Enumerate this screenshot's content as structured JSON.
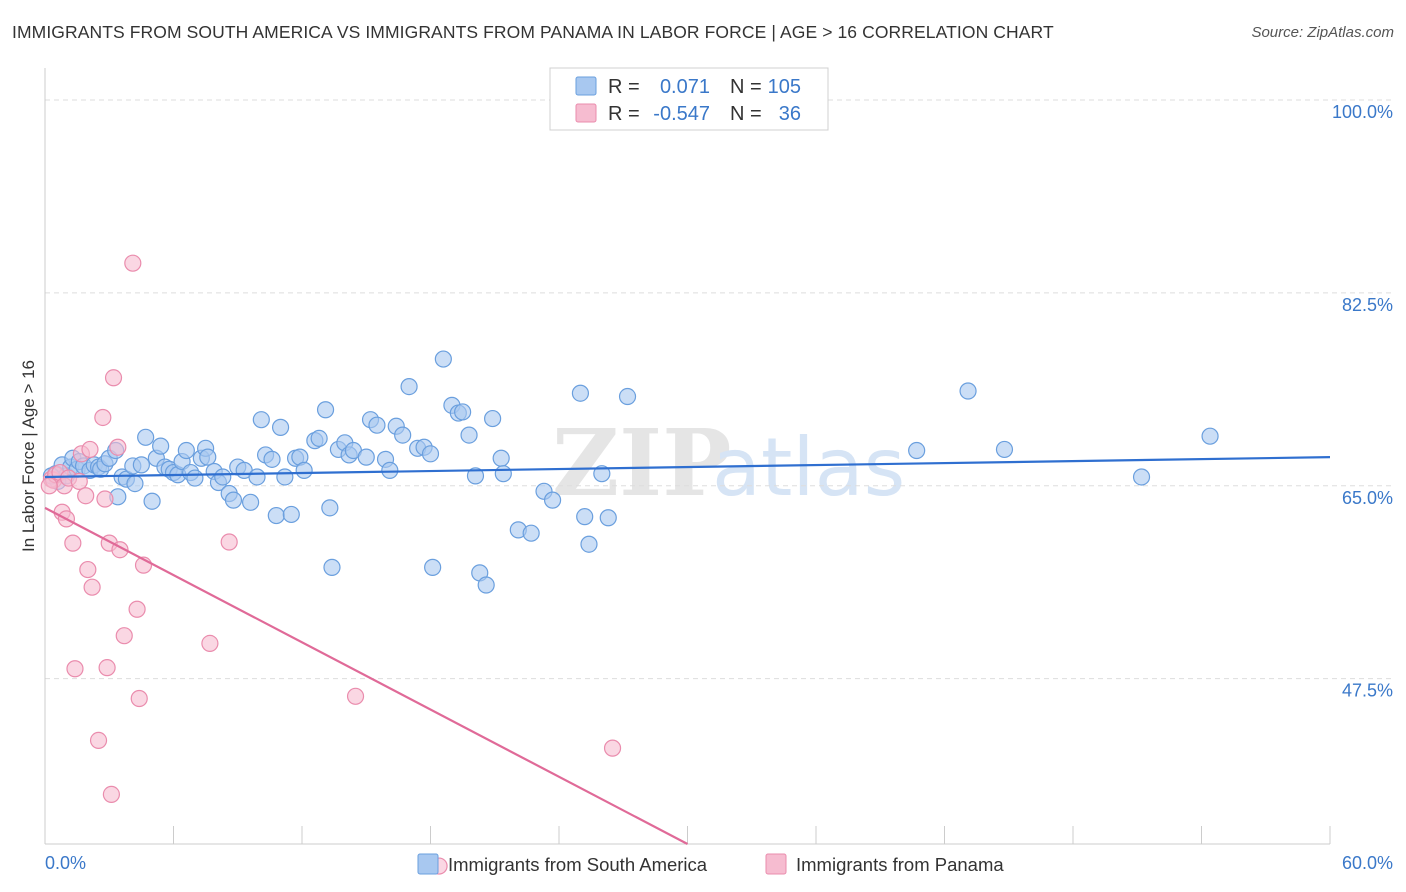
{
  "title": "IMMIGRANTS FROM SOUTH AMERICA VS IMMIGRANTS FROM PANAMA IN LABOR FORCE | AGE > 16 CORRELATION CHART",
  "source": "Source: ZipAtlas.com",
  "watermark": {
    "zip": "ZIP",
    "atlas": "atlas"
  },
  "colors": {
    "blue_fill": "#a8c8f0",
    "blue_stroke": "#6a9fde",
    "blue_line": "#2f6fd0",
    "pink_fill": "#f6bcd0",
    "pink_stroke": "#ea8cad",
    "pink_line": "#e06a98",
    "tick_text": "#3a78c9",
    "grid": "#dddddd"
  },
  "legend": {
    "rows": [
      {
        "r_label": "R =",
        "r_value": "0.071",
        "n_label": "N =",
        "n_value": "105"
      },
      {
        "r_label": "R =",
        "r_value": "-0.547",
        "n_label": "N =",
        "n_value": "36"
      }
    ]
  },
  "chart_data": {
    "type": "scatter",
    "title": "IMMIGRANTS FROM SOUTH AMERICA VS IMMIGRANTS FROM PANAMA IN LABOR FORCE | AGE > 16 CORRELATION CHART",
    "xlabel": "",
    "ylabel": "In Labor Force | Age > 16",
    "xlim": [
      0,
      60
    ],
    "ylim": [
      32.5,
      102
    ],
    "x_tick_labels": [
      "0.0%",
      "60.0%"
    ],
    "y_ticks": [
      47.5,
      65.0,
      82.5,
      100.0
    ],
    "y_tick_labels": [
      "47.5%",
      "65.0%",
      "82.5%",
      "100.0%"
    ],
    "grid": "horizontal dashed",
    "legend_position": "bottom-center",
    "series": [
      {
        "name": "Immigrants from South America",
        "color": "#a8c8f0",
        "trend": {
          "x": [
            0,
            60
          ],
          "y": [
            65.8,
            67.6
          ]
        },
        "points": [
          [
            0.5,
            66.1
          ],
          [
            0.6,
            65.4
          ],
          [
            0.8,
            66.9
          ],
          [
            1.0,
            65.9
          ],
          [
            1.2,
            66.7
          ],
          [
            1.3,
            67.5
          ],
          [
            1.5,
            66.5
          ],
          [
            1.6,
            67.2
          ],
          [
            1.8,
            66.8
          ],
          [
            2.1,
            66.4
          ],
          [
            2.3,
            66.9
          ],
          [
            2.5,
            66.7
          ],
          [
            2.6,
            66.5
          ],
          [
            2.8,
            67.0
          ],
          [
            3.0,
            67.5
          ],
          [
            3.3,
            68.2
          ],
          [
            3.4,
            64.0
          ],
          [
            3.6,
            65.8
          ],
          [
            3.8,
            65.6
          ],
          [
            4.1,
            66.8
          ],
          [
            4.2,
            65.2
          ],
          [
            4.5,
            66.9
          ],
          [
            4.7,
            69.4
          ],
          [
            5.0,
            63.6
          ],
          [
            5.2,
            67.5
          ],
          [
            5.4,
            68.6
          ],
          [
            5.6,
            66.7
          ],
          [
            5.8,
            66.5
          ],
          [
            6.0,
            66.2
          ],
          [
            6.2,
            66.0
          ],
          [
            6.4,
            67.2
          ],
          [
            6.6,
            68.2
          ],
          [
            6.8,
            66.2
          ],
          [
            7.0,
            65.7
          ],
          [
            7.3,
            67.5
          ],
          [
            7.5,
            68.4
          ],
          [
            7.6,
            67.6
          ],
          [
            7.9,
            66.3
          ],
          [
            8.1,
            65.3
          ],
          [
            8.3,
            65.8
          ],
          [
            8.6,
            64.3
          ],
          [
            8.8,
            63.7
          ],
          [
            9.0,
            66.7
          ],
          [
            9.3,
            66.4
          ],
          [
            9.6,
            63.5
          ],
          [
            9.9,
            65.8
          ],
          [
            10.1,
            71.0
          ],
          [
            10.3,
            67.8
          ],
          [
            10.6,
            67.4
          ],
          [
            10.8,
            62.3
          ],
          [
            11.0,
            70.3
          ],
          [
            11.2,
            65.8
          ],
          [
            11.5,
            62.4
          ],
          [
            11.7,
            67.5
          ],
          [
            11.9,
            67.6
          ],
          [
            12.1,
            66.4
          ],
          [
            12.6,
            69.1
          ],
          [
            12.8,
            69.3
          ],
          [
            13.1,
            71.9
          ],
          [
            13.3,
            63.0
          ],
          [
            13.4,
            57.6
          ],
          [
            13.7,
            68.3
          ],
          [
            14.0,
            68.9
          ],
          [
            14.2,
            67.8
          ],
          [
            14.4,
            68.2
          ],
          [
            15.0,
            67.6
          ],
          [
            15.2,
            71.0
          ],
          [
            15.5,
            70.5
          ],
          [
            15.9,
            67.4
          ],
          [
            16.1,
            66.4
          ],
          [
            16.4,
            70.4
          ],
          [
            16.7,
            69.6
          ],
          [
            17.0,
            74.0
          ],
          [
            17.4,
            68.4
          ],
          [
            17.7,
            68.5
          ],
          [
            18.0,
            67.9
          ],
          [
            18.1,
            57.6
          ],
          [
            18.6,
            76.5
          ],
          [
            19.0,
            72.3
          ],
          [
            19.3,
            71.6
          ],
          [
            19.5,
            71.7
          ],
          [
            19.8,
            69.6
          ],
          [
            20.1,
            65.9
          ],
          [
            20.3,
            57.1
          ],
          [
            20.6,
            56.0
          ],
          [
            20.9,
            71.1
          ],
          [
            21.3,
            67.5
          ],
          [
            21.4,
            66.1
          ],
          [
            22.1,
            61.0
          ],
          [
            22.7,
            60.7
          ],
          [
            23.3,
            64.5
          ],
          [
            23.7,
            63.7
          ],
          [
            25.0,
            73.4
          ],
          [
            25.2,
            62.2
          ],
          [
            25.4,
            59.7
          ],
          [
            26.0,
            66.1
          ],
          [
            26.3,
            62.1
          ],
          [
            27.2,
            73.1
          ],
          [
            40.7,
            68.2
          ],
          [
            44.8,
            68.3
          ],
          [
            43.1,
            73.6
          ],
          [
            51.2,
            65.8
          ],
          [
            54.4,
            69.5
          ],
          [
            0.3,
            65.9
          ]
        ]
      },
      {
        "name": "Immigrants from Panama",
        "color": "#f6bcd0",
        "trend": {
          "x": [
            0,
            30
          ],
          "y": [
            63.0,
            32.5
          ]
        },
        "points": [
          [
            0.3,
            65.6
          ],
          [
            0.4,
            65.5
          ],
          [
            0.5,
            66.0
          ],
          [
            0.7,
            66.2
          ],
          [
            0.8,
            62.6
          ],
          [
            0.9,
            65.0
          ],
          [
            1.0,
            62.0
          ],
          [
            1.1,
            65.7
          ],
          [
            1.3,
            59.8
          ],
          [
            1.4,
            48.4
          ],
          [
            1.6,
            65.4
          ],
          [
            1.7,
            67.9
          ],
          [
            1.9,
            64.1
          ],
          [
            2.0,
            57.4
          ],
          [
            2.1,
            68.3
          ],
          [
            2.2,
            55.8
          ],
          [
            2.5,
            41.9
          ],
          [
            2.7,
            71.2
          ],
          [
            2.8,
            63.8
          ],
          [
            2.9,
            48.5
          ],
          [
            3.0,
            59.8
          ],
          [
            3.1,
            37.0
          ],
          [
            3.2,
            74.8
          ],
          [
            3.4,
            68.5
          ],
          [
            3.5,
            59.2
          ],
          [
            3.7,
            51.4
          ],
          [
            4.1,
            85.2
          ],
          [
            4.3,
            53.8
          ],
          [
            4.4,
            45.7
          ],
          [
            4.6,
            57.8
          ],
          [
            7.7,
            50.7
          ],
          [
            8.6,
            59.9
          ],
          [
            14.5,
            45.9
          ],
          [
            18.4,
            30.5
          ],
          [
            26.5,
            41.2
          ],
          [
            0.2,
            65.0
          ]
        ]
      }
    ]
  },
  "bottom_legend": [
    {
      "label": "Immigrants from South America"
    },
    {
      "label": "Immigrants from Panama"
    }
  ]
}
